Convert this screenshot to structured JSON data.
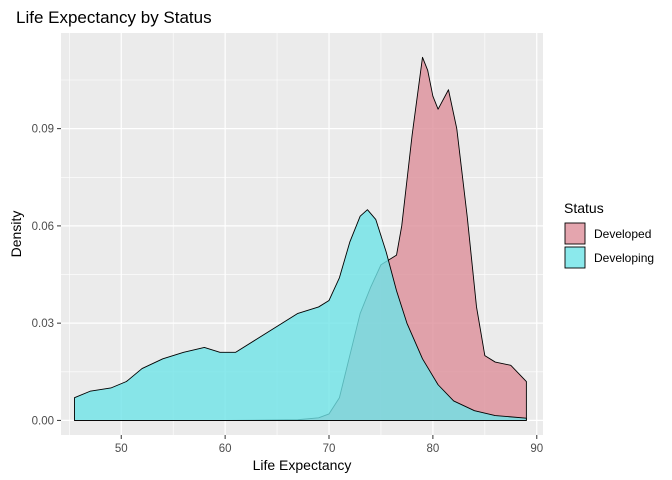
{
  "chart_data": {
    "type": "area",
    "title": "Life Expectancy by Status",
    "xlabel": "Life Expectancy",
    "ylabel": "Density",
    "xlim": [
      44.2,
      90.6
    ],
    "ylim": [
      -0.0045,
      0.1195
    ],
    "x_ticks": [
      50,
      60,
      70,
      80,
      90
    ],
    "x_tick_labels": [
      "50",
      "60",
      "70",
      "80",
      "90"
    ],
    "y_ticks": [
      0.0,
      0.03,
      0.06,
      0.09
    ],
    "y_tick_labels": [
      "0.00",
      "0.03",
      "0.06",
      "0.09"
    ],
    "grid": true,
    "legend": {
      "title": "Status",
      "position": "right"
    },
    "series": [
      {
        "name": "Developed",
        "color": "#F8766D",
        "fill_color": "#dd8f9a",
        "points": [
          [
            45.5,
            0.0
          ],
          [
            60.0,
            0.0
          ],
          [
            67.0,
            0.0002
          ],
          [
            69.0,
            0.0008
          ],
          [
            70.0,
            0.002
          ],
          [
            71.0,
            0.007
          ],
          [
            72.0,
            0.02
          ],
          [
            73.0,
            0.033
          ],
          [
            74.0,
            0.041
          ],
          [
            75.0,
            0.048
          ],
          [
            76.5,
            0.051
          ],
          [
            77.0,
            0.06
          ],
          [
            78.0,
            0.088
          ],
          [
            79.0,
            0.112
          ],
          [
            79.5,
            0.108
          ],
          [
            80.0,
            0.1
          ],
          [
            80.5,
            0.096
          ],
          [
            81.5,
            0.102
          ],
          [
            82.3,
            0.09
          ],
          [
            83.3,
            0.063
          ],
          [
            84.2,
            0.035
          ],
          [
            85.0,
            0.02
          ],
          [
            86.0,
            0.018
          ],
          [
            87.5,
            0.017
          ],
          [
            89.0,
            0.012
          ]
        ]
      },
      {
        "name": "Developing",
        "color": "#00BFC4",
        "fill_color": "#6ee4e7",
        "points": [
          [
            45.5,
            0.007
          ],
          [
            47.0,
            0.009
          ],
          [
            49.0,
            0.01
          ],
          [
            50.5,
            0.012
          ],
          [
            52.0,
            0.016
          ],
          [
            54.0,
            0.019
          ],
          [
            56.0,
            0.021
          ],
          [
            58.0,
            0.0225
          ],
          [
            59.5,
            0.021
          ],
          [
            61.0,
            0.021
          ],
          [
            63.0,
            0.025
          ],
          [
            65.0,
            0.029
          ],
          [
            67.0,
            0.033
          ],
          [
            69.0,
            0.035
          ],
          [
            70.0,
            0.037
          ],
          [
            71.0,
            0.044
          ],
          [
            72.0,
            0.055
          ],
          [
            73.0,
            0.063
          ],
          [
            73.7,
            0.065
          ],
          [
            74.5,
            0.062
          ],
          [
            75.5,
            0.052
          ],
          [
            76.5,
            0.04
          ],
          [
            77.5,
            0.03
          ],
          [
            79.0,
            0.019
          ],
          [
            80.5,
            0.011
          ],
          [
            82.0,
            0.006
          ],
          [
            84.0,
            0.003
          ],
          [
            86.0,
            0.0015
          ],
          [
            89.0,
            0.0007
          ]
        ]
      }
    ]
  }
}
